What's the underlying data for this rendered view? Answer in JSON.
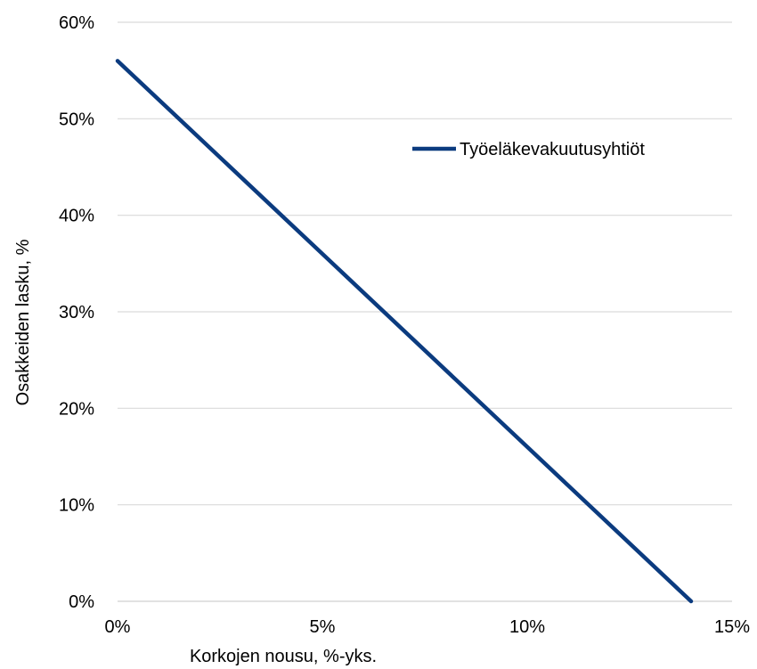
{
  "chart_data": {
    "type": "line",
    "xlabel": "Korkojen nousu, %-yks.",
    "ylabel": "Osakkeiden lasku, %",
    "xlim": [
      0,
      15
    ],
    "ylim": [
      0,
      60
    ],
    "x_ticks": [
      0,
      5,
      10,
      15
    ],
    "x_tick_labels": [
      "0%",
      "5%",
      "10%",
      "15%"
    ],
    "y_ticks": [
      0,
      10,
      20,
      30,
      40,
      50,
      60
    ],
    "y_tick_labels": [
      "0%",
      "10%",
      "20%",
      "30%",
      "40%",
      "50%",
      "60%"
    ],
    "grid": "horizontal",
    "legend_position": "right",
    "series": [
      {
        "name": "Työeläkevakuutusyhtiöt",
        "color": "#0b3b7f",
        "x": [
          0,
          14
        ],
        "y": [
          56,
          0
        ]
      }
    ]
  }
}
